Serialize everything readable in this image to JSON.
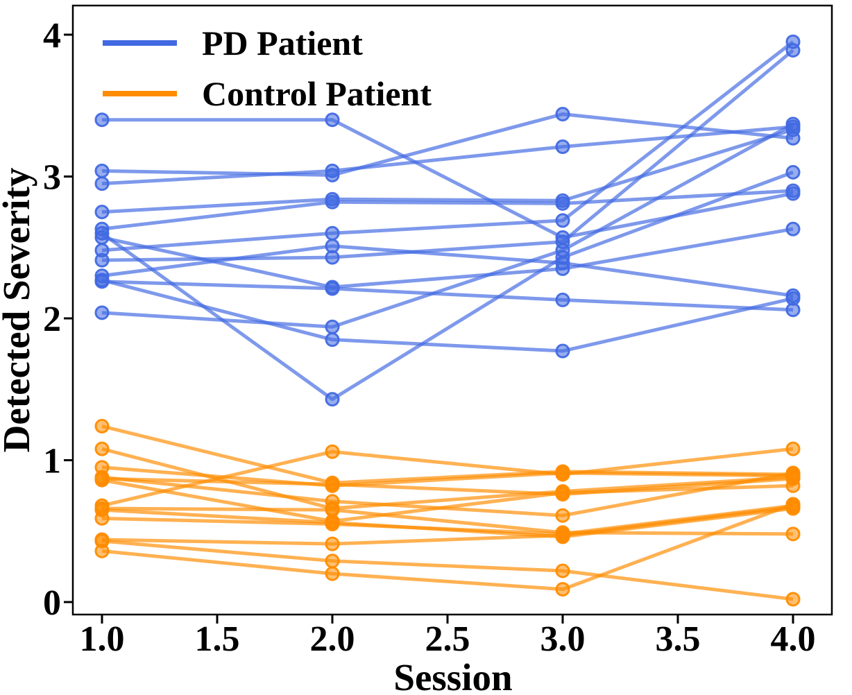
{
  "figure_title": "",
  "axes": {
    "xlabel": "Session",
    "ylabel": "Detected Severity"
  },
  "legend": {
    "position": "upper left",
    "items": [
      {
        "label": "PD Patient",
        "color": "#4169E1"
      },
      {
        "label": "Control Patient",
        "color": "#FF8C00"
      }
    ]
  },
  "chart_data": {
    "type": "line",
    "title": "",
    "xlabel": "Session",
    "ylabel": "Detected Severity",
    "x": [
      1.0,
      2.0,
      3.0,
      4.0
    ],
    "xlim": [
      0.87,
      4.17
    ],
    "ylim": [
      -0.09,
      4.21
    ],
    "xticks": {
      "values": [
        1.0,
        1.5,
        2.0,
        2.5,
        3.0,
        3.5,
        4.0
      ],
      "labels": [
        "1.0",
        "1.5",
        "2.0",
        "2.5",
        "3.0",
        "3.5",
        "4.0"
      ]
    },
    "yticks": {
      "values": [
        0,
        1,
        2,
        3,
        4
      ],
      "labels": [
        "0",
        "1",
        "2",
        "3",
        "4"
      ]
    },
    "grid": false,
    "marker": "circle",
    "legend_position": "upper left",
    "groups": [
      {
        "name": "PD Patient",
        "color": "#4169E1",
        "series": [
          [
            3.4,
            3.4,
            2.57,
            2.88
          ],
          [
            3.04,
            3.01,
            3.44,
            3.27
          ],
          [
            2.95,
            3.04,
            3.21,
            3.35
          ],
          [
            2.75,
            2.84,
            2.83,
            3.33
          ],
          [
            2.63,
            2.82,
            2.81,
            2.9
          ],
          [
            2.26,
            2.21,
            2.13,
            2.06
          ],
          [
            2.57,
            2.22,
            2.35,
            2.63
          ],
          [
            2.48,
            2.6,
            2.69,
            3.95
          ],
          [
            2.41,
            2.43,
            2.54,
            3.89
          ],
          [
            2.3,
            2.51,
            2.39,
            2.16
          ],
          [
            2.27,
            1.85,
            1.77,
            2.14
          ],
          [
            2.6,
            1.43,
            2.43,
            3.03
          ],
          [
            2.04,
            1.94,
            2.48,
            3.37
          ]
        ]
      },
      {
        "name": "Control Patient",
        "color": "#FF8C00",
        "series": [
          [
            1.24,
            0.84,
            0.92,
            0.9
          ],
          [
            1.08,
            0.66,
            0.78,
            0.88
          ],
          [
            0.95,
            0.82,
            0.91,
            0.89
          ],
          [
            0.68,
            1.06,
            0.9,
            1.08
          ],
          [
            0.87,
            0.83,
            0.76,
            0.87
          ],
          [
            0.86,
            0.57,
            0.77,
            0.82
          ],
          [
            0.88,
            0.71,
            0.61,
            0.91
          ],
          [
            0.66,
            0.65,
            0.49,
            0.48
          ],
          [
            0.65,
            0.56,
            0.46,
            0.66
          ],
          [
            0.59,
            0.55,
            0.48,
            0.68
          ],
          [
            0.44,
            0.41,
            0.47,
            0.67
          ],
          [
            0.43,
            0.29,
            0.22,
            0.02
          ],
          [
            0.36,
            0.2,
            0.09,
            0.69
          ]
        ]
      }
    ]
  }
}
